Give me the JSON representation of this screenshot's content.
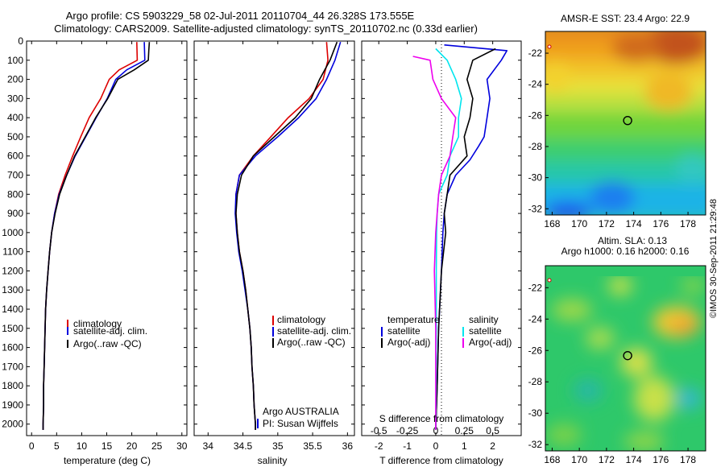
{
  "header": {
    "line1": "Argo profile: CS 5903229_58 02-Jul-2011 20110704_44 26.328S 173.555E",
    "line2": "Climatology: CARS2009. Satellite-adjusted climatology: synTS_20110702.nc (0.33d earlier)"
  },
  "credit": "©IMOS 30-Sep-2011 21:29:48",
  "colors": {
    "red": "#dd0000",
    "blue": "#0000dd",
    "black": "#000000",
    "cyan": "#00e5ee",
    "magenta": "#ee00ee"
  },
  "depth_ticks": [
    "0",
    "100",
    "200",
    "300",
    "400",
    "500",
    "600",
    "700",
    "800",
    "900",
    "1000",
    "1100",
    "1200",
    "1300",
    "1400",
    "1500",
    "1600",
    "1700",
    "1800",
    "1900",
    "2000"
  ],
  "chart_data": [
    {
      "type": "line",
      "name": "temperature",
      "xlabel": "temperature (deg C)",
      "xlim": [
        -1,
        31
      ],
      "ylim": [
        2060,
        0
      ],
      "xticks": [
        {
          "v": 0,
          "l": "0"
        },
        {
          "v": 5,
          "l": "5"
        },
        {
          "v": 10,
          "l": "10"
        },
        {
          "v": 15,
          "l": "15"
        },
        {
          "v": 20,
          "l": "20"
        },
        {
          "v": 25,
          "l": "25"
        },
        {
          "v": 30,
          "l": "30"
        }
      ],
      "legend": [
        "climatology",
        "satellite-adj. clim.",
        "Argo(..raw -QC)"
      ],
      "series": [
        {
          "color": "red",
          "points": [
            [
              21,
              5
            ],
            [
              21.1,
              100
            ],
            [
              17.5,
              150
            ],
            [
              15.5,
              200
            ],
            [
              13.8,
              300
            ],
            [
              11.5,
              400
            ],
            [
              9.8,
              500
            ],
            [
              8.2,
              600
            ],
            [
              6.7,
              700
            ],
            [
              5.4,
              800
            ],
            [
              4.6,
              900
            ],
            [
              4.0,
              1000
            ],
            [
              3.6,
              1100
            ],
            [
              3.3,
              1200
            ],
            [
              3.0,
              1300
            ],
            [
              2.8,
              1400
            ],
            [
              2.7,
              1500
            ],
            [
              2.6,
              1600
            ],
            [
              2.5,
              1700
            ],
            [
              2.4,
              1800
            ],
            [
              2.4,
              1900
            ],
            [
              2.3,
              2000
            ],
            [
              2.3,
              2030
            ]
          ]
        },
        {
          "color": "blue",
          "points": [
            [
              22.5,
              5
            ],
            [
              22.6,
              100
            ],
            [
              19,
              150
            ],
            [
              16.8,
              200
            ],
            [
              15.1,
              300
            ],
            [
              12.9,
              400
            ],
            [
              10.8,
              500
            ],
            [
              8.7,
              600
            ],
            [
              7.0,
              700
            ],
            [
              5.5,
              800
            ],
            [
              4.6,
              900
            ],
            [
              4.0,
              1000
            ],
            [
              3.6,
              1100
            ],
            [
              3.3,
              1200
            ],
            [
              3.0,
              1300
            ],
            [
              2.8,
              1400
            ],
            [
              2.7,
              1500
            ],
            [
              2.6,
              1600
            ],
            [
              2.5,
              1700
            ],
            [
              2.4,
              1800
            ],
            [
              2.4,
              1900
            ],
            [
              2.3,
              2000
            ],
            [
              2.3,
              2030
            ]
          ]
        },
        {
          "color": "black",
          "points": [
            [
              23.5,
              5
            ],
            [
              23.4,
              50
            ],
            [
              23.3,
              100
            ],
            [
              20.5,
              150
            ],
            [
              17.2,
              200
            ],
            [
              15.2,
              300
            ],
            [
              12.8,
              400
            ],
            [
              10.7,
              500
            ],
            [
              8.6,
              600
            ],
            [
              7.0,
              700
            ],
            [
              5.6,
              800
            ],
            [
              4.7,
              900
            ],
            [
              4.0,
              1000
            ],
            [
              3.6,
              1100
            ],
            [
              3.3,
              1200
            ],
            [
              3.0,
              1300
            ],
            [
              2.8,
              1400
            ],
            [
              2.7,
              1500
            ],
            [
              2.6,
              1600
            ],
            [
              2.5,
              1700
            ],
            [
              2.4,
              1800
            ],
            [
              2.4,
              1900
            ],
            [
              2.3,
              2000
            ],
            [
              2.3,
              2030
            ]
          ]
        }
      ]
    },
    {
      "type": "line",
      "name": "salinity",
      "xlabel": "salinity",
      "xlim": [
        33.8,
        36.1
      ],
      "ylim": [
        2060,
        0
      ],
      "xticks": [
        {
          "v": 34,
          "l": "34"
        },
        {
          "v": 34.5,
          "l": "34.5"
        },
        {
          "v": 35,
          "l": "35"
        },
        {
          "v": 35.5,
          "l": "35.5"
        },
        {
          "v": 36,
          "l": "36"
        }
      ],
      "legend": [
        "climatology",
        "satellite-adj. clim.",
        "Argo(..raw -QC)"
      ],
      "annotation": [
        "Argo AUSTRALIA",
        "PI: Susan Wijffels"
      ],
      "series": [
        {
          "color": "red",
          "points": [
            [
              35.7,
              5
            ],
            [
              35.72,
              100
            ],
            [
              35.65,
              200
            ],
            [
              35.45,
              300
            ],
            [
              35.15,
              400
            ],
            [
              34.9,
              500
            ],
            [
              34.65,
              600
            ],
            [
              34.45,
              700
            ],
            [
              34.4,
              800
            ],
            [
              34.4,
              900
            ],
            [
              34.42,
              1000
            ],
            [
              34.45,
              1100
            ],
            [
              34.5,
              1200
            ],
            [
              34.54,
              1300
            ],
            [
              34.57,
              1400
            ],
            [
              34.6,
              1500
            ],
            [
              34.62,
              1600
            ],
            [
              34.63,
              1700
            ],
            [
              34.65,
              1800
            ],
            [
              34.66,
              1900
            ],
            [
              34.68,
              2000
            ],
            [
              34.68,
              2030
            ]
          ]
        },
        {
          "color": "blue",
          "points": [
            [
              35.9,
              5
            ],
            [
              35.82,
              100
            ],
            [
              35.7,
              200
            ],
            [
              35.55,
              300
            ],
            [
              35.3,
              400
            ],
            [
              35.0,
              500
            ],
            [
              34.68,
              600
            ],
            [
              34.45,
              700
            ],
            [
              34.4,
              800
            ],
            [
              34.39,
              900
            ],
            [
              34.41,
              1000
            ],
            [
              34.44,
              1100
            ],
            [
              34.49,
              1200
            ],
            [
              34.53,
              1300
            ],
            [
              34.57,
              1400
            ],
            [
              34.6,
              1500
            ],
            [
              34.62,
              1600
            ],
            [
              34.63,
              1700
            ],
            [
              34.65,
              1800
            ],
            [
              34.66,
              1900
            ],
            [
              34.68,
              2000
            ],
            [
              34.68,
              2030
            ]
          ]
        },
        {
          "color": "black",
          "points": [
            [
              35.85,
              5
            ],
            [
              35.75,
              100
            ],
            [
              35.6,
              200
            ],
            [
              35.48,
              300
            ],
            [
              35.25,
              400
            ],
            [
              34.95,
              500
            ],
            [
              34.65,
              600
            ],
            [
              34.48,
              700
            ],
            [
              34.42,
              800
            ],
            [
              34.4,
              900
            ],
            [
              34.42,
              1000
            ],
            [
              34.45,
              1100
            ],
            [
              34.5,
              1200
            ],
            [
              34.54,
              1300
            ],
            [
              34.57,
              1400
            ],
            [
              34.6,
              1500
            ],
            [
              34.62,
              1600
            ],
            [
              34.63,
              1700
            ],
            [
              34.65,
              1800
            ],
            [
              34.66,
              1900
            ],
            [
              34.68,
              2000
            ],
            [
              34.68,
              2030
            ]
          ]
        }
      ]
    },
    {
      "type": "line",
      "name": "difference",
      "xlabel": "T difference from climatology",
      "xlabel_top": "S difference from climatology",
      "xlim": [
        -2.6,
        3.0
      ],
      "ylim": [
        2060,
        0
      ],
      "xticks": [
        {
          "v": -2,
          "l": "-2"
        },
        {
          "v": -1,
          "l": "-1"
        },
        {
          "v": 0,
          "l": "0"
        },
        {
          "v": 1,
          "l": "1"
        },
        {
          "v": 2,
          "l": "2"
        }
      ],
      "xticks_s": [
        {
          "v": -2,
          "l": "-0.5"
        },
        {
          "v": -1,
          "l": "-0.25"
        },
        {
          "v": 0,
          "l": "0"
        },
        {
          "v": 1,
          "l": "0.25"
        },
        {
          "v": 2,
          "l": "0.5"
        }
      ],
      "legend_headers": [
        "temperature",
        "salinity"
      ],
      "legend": [
        "satellite",
        "Argo(-adj)",
        "satellite",
        "Argo(-adj)"
      ],
      "series": [
        {
          "color": "blue",
          "points": [
            [
              0.3,
              20
            ],
            [
              2.5,
              50
            ],
            [
              2.3,
              100
            ],
            [
              1.8,
              200
            ],
            [
              1.9,
              300
            ],
            [
              1.8,
              400
            ],
            [
              1.7,
              500
            ],
            [
              1.5,
              550
            ],
            [
              1.2,
              620
            ],
            [
              0.7,
              700
            ],
            [
              0.4,
              800
            ],
            [
              0.3,
              900
            ],
            [
              0.25,
              1000
            ],
            [
              0.2,
              1200
            ],
            [
              0.1,
              1500
            ],
            [
              0.05,
              1800
            ],
            [
              0.0,
              2030
            ]
          ]
        },
        {
          "color": "black",
          "points": [
            [
              2.1,
              40
            ],
            [
              1.3,
              100
            ],
            [
              1.1,
              200
            ],
            [
              1.3,
              300
            ],
            [
              1.2,
              400
            ],
            [
              1.0,
              500
            ],
            [
              1.1,
              600
            ],
            [
              0.5,
              700
            ],
            [
              0.4,
              800
            ],
            [
              0.3,
              900
            ],
            [
              0.35,
              1000
            ],
            [
              0.2,
              1200
            ],
            [
              0.1,
              1500
            ],
            [
              0.05,
              1800
            ],
            [
              0.0,
              2030
            ]
          ]
        },
        {
          "color": "cyan",
          "points": [
            [
              0.0,
              40
            ],
            [
              0.4,
              100
            ],
            [
              0.7,
              200
            ],
            [
              0.9,
              300
            ],
            [
              0.8,
              400
            ],
            [
              0.8,
              500
            ],
            [
              0.5,
              600
            ],
            [
              0.4,
              700
            ],
            [
              0.1,
              800
            ],
            [
              0.05,
              900
            ],
            [
              0.03,
              1000
            ],
            [
              0.02,
              1200
            ],
            [
              0.02,
              1500
            ],
            [
              0.01,
              1800
            ],
            [
              0.0,
              2030
            ]
          ]
        },
        {
          "color": "magenta",
          "points": [
            [
              -0.8,
              80
            ],
            [
              -0.2,
              100
            ],
            [
              -0.1,
              200
            ],
            [
              0.2,
              300
            ],
            [
              0.7,
              400
            ],
            [
              0.6,
              500
            ],
            [
              0.5,
              600
            ],
            [
              0.2,
              700
            ],
            [
              0.1,
              800
            ],
            [
              0.0,
              1000
            ],
            [
              -0.05,
              1200
            ],
            [
              0.0,
              1500
            ],
            [
              0.0,
              1800
            ],
            [
              0.0,
              2030
            ]
          ]
        }
      ]
    },
    {
      "type": "heatmap",
      "name": "sst-map",
      "title": "AMSR-E SST: 23.4  Argo: 22.9",
      "xlim": [
        167.5,
        179.3
      ],
      "ylim": [
        -32.4,
        -20.6
      ],
      "xticks": [
        "168",
        "170",
        "172",
        "174",
        "176",
        "178"
      ],
      "yticks": [
        "-22",
        "-24",
        "-26",
        "-28",
        "-30",
        "-32"
      ],
      "marker": {
        "lon": 173.555,
        "lat": -26.328
      }
    },
    {
      "type": "heatmap",
      "name": "sla-map",
      "title_lines": [
        "Altim. SLA: 0.13",
        "Argo h1000: 0.16 h2000: 0.16"
      ],
      "xlim": [
        167.5,
        179.3
      ],
      "ylim": [
        -32.4,
        -20.6
      ],
      "xticks": [
        "168",
        "170",
        "172",
        "174",
        "176",
        "178"
      ],
      "yticks": [
        "-22",
        "-24",
        "-26",
        "-28",
        "-30",
        "-32"
      ],
      "marker": {
        "lon": 173.555,
        "lat": -26.328
      }
    }
  ]
}
